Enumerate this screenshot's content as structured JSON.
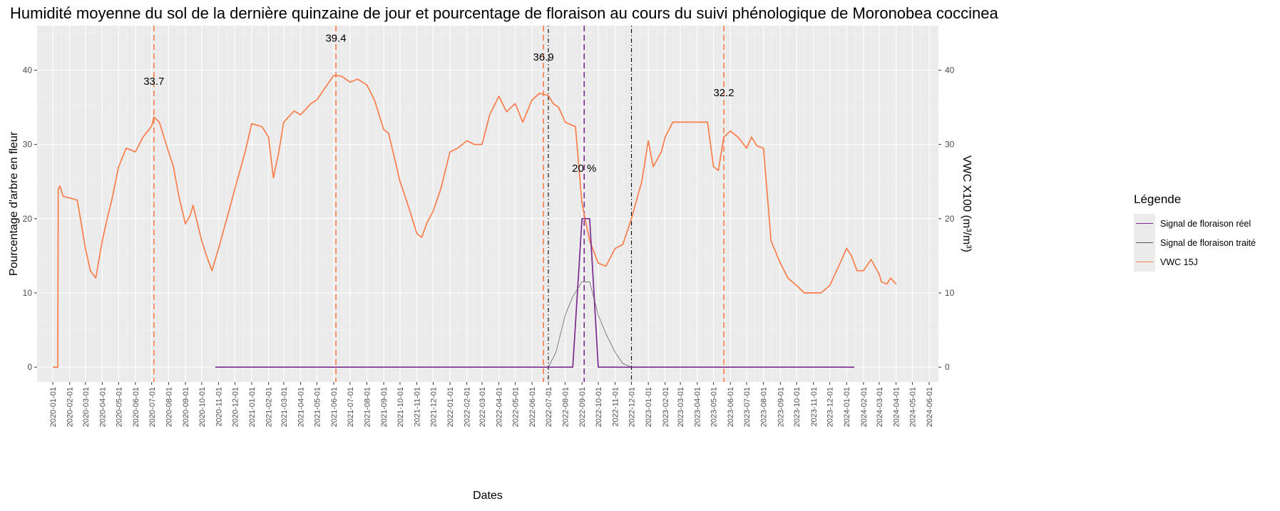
{
  "chart_data": {
    "type": "line",
    "title": "Humidité moyenne du sol de la dernière quinzaine de jour et pourcentage de floraison au cours du suivi phénologique de Moronobea coccinea",
    "xlabel": "Dates",
    "ylabel": "Pourcentage d'arbre en fleur",
    "y2label": "VWC X100 (m³/m³)",
    "ylim": [
      -2,
      46
    ],
    "xlim": [
      "2019-12-03",
      "2024-06-18"
    ],
    "yticks": [
      0,
      10,
      20,
      30,
      40
    ],
    "y2ticks": [
      0,
      10,
      20,
      30,
      40
    ],
    "xticks": [
      "2020-01-01",
      "2020-02-01",
      "2020-03-01",
      "2020-04-01",
      "2020-05-01",
      "2020-06-01",
      "2020-07-01",
      "2020-08-01",
      "2020-09-01",
      "2020-10-01",
      "2020-11-01",
      "2020-12-01",
      "2021-01-01",
      "2021-02-01",
      "2021-03-01",
      "2021-04-01",
      "2021-05-01",
      "2021-06-01",
      "2021-07-01",
      "2021-08-01",
      "2021-09-01",
      "2021-10-01",
      "2021-11-01",
      "2021-12-01",
      "2022-01-01",
      "2022-02-01",
      "2022-03-01",
      "2022-04-01",
      "2022-05-01",
      "2022-06-01",
      "2022-07-01",
      "2022-08-01",
      "2022-09-01",
      "2022-10-01",
      "2022-11-01",
      "2022-12-01",
      "2023-01-01",
      "2023-02-01",
      "2023-03-01",
      "2023-04-01",
      "2023-05-01",
      "2023-06-01",
      "2023-07-01",
      "2023-08-01",
      "2023-09-01",
      "2023-10-01",
      "2023-11-01",
      "2023-12-01",
      "2024-01-01",
      "2024-02-01",
      "2024-03-01",
      "2024-04-01",
      "2024-05-01",
      "2024-06-01"
    ],
    "grid": true,
    "legend": {
      "title": "Légende",
      "position": "right",
      "entries": [
        {
          "label": "Signal de floraison réel",
          "color": "#7b2a8f"
        },
        {
          "label": "Signal de floraison traité",
          "color": "#555555"
        },
        {
          "label": "VWC 15J",
          "color": "#fa7d4a"
        }
      ]
    },
    "series": [
      {
        "name": "VWC 15J",
        "color": "#fa7d4a",
        "points": [
          [
            "2020-01-01",
            0
          ],
          [
            "2020-01-10",
            0
          ],
          [
            "2020-01-11",
            24
          ],
          [
            "2020-01-14",
            24.4
          ],
          [
            "2020-01-20",
            23
          ],
          [
            "2020-02-01",
            22.8
          ],
          [
            "2020-02-15",
            22.5
          ],
          [
            "2020-03-01",
            16
          ],
          [
            "2020-03-10",
            13
          ],
          [
            "2020-03-20",
            12
          ],
          [
            "2020-04-01",
            17
          ],
          [
            "2020-04-10",
            20
          ],
          [
            "2020-04-20",
            23
          ],
          [
            "2020-05-01",
            27
          ],
          [
            "2020-05-15",
            29.5
          ],
          [
            "2020-06-01",
            29
          ],
          [
            "2020-06-15",
            31
          ],
          [
            "2020-07-01",
            32.5
          ],
          [
            "2020-07-05",
            33.7
          ],
          [
            "2020-07-15",
            33
          ],
          [
            "2020-08-01",
            29
          ],
          [
            "2020-08-10",
            27
          ],
          [
            "2020-08-20",
            23
          ],
          [
            "2020-09-01",
            19.3
          ],
          [
            "2020-09-10",
            20.5
          ],
          [
            "2020-09-15",
            21.8
          ],
          [
            "2020-10-01",
            17
          ],
          [
            "2020-10-10",
            15
          ],
          [
            "2020-10-20",
            13
          ],
          [
            "2020-11-01",
            16
          ],
          [
            "2020-11-20",
            21
          ],
          [
            "2020-12-01",
            24
          ],
          [
            "2020-12-20",
            29
          ],
          [
            "2021-01-01",
            32.8
          ],
          [
            "2021-01-20",
            32.4
          ],
          [
            "2021-02-01",
            31
          ],
          [
            "2021-02-10",
            25.5
          ],
          [
            "2021-02-20",
            29
          ],
          [
            "2021-03-01",
            33
          ],
          [
            "2021-03-20",
            34.5
          ],
          [
            "2021-04-01",
            34
          ],
          [
            "2021-04-20",
            35.5
          ],
          [
            "2021-05-01",
            36
          ],
          [
            "2021-05-15",
            37.5
          ],
          [
            "2021-06-01",
            39.3
          ],
          [
            "2021-06-15",
            39.2
          ],
          [
            "2021-07-01",
            38.4
          ],
          [
            "2021-07-15",
            38.8
          ],
          [
            "2021-08-01",
            38
          ],
          [
            "2021-08-15",
            36
          ],
          [
            "2021-09-01",
            32
          ],
          [
            "2021-09-10",
            31.5
          ],
          [
            "2021-10-01",
            25
          ],
          [
            "2021-10-15",
            22
          ],
          [
            "2021-11-01",
            18
          ],
          [
            "2021-11-10",
            17.5
          ],
          [
            "2021-11-20",
            19.5
          ],
          [
            "2021-12-01",
            21
          ],
          [
            "2021-12-15",
            24
          ],
          [
            "2022-01-01",
            29
          ],
          [
            "2022-01-15",
            29.5
          ],
          [
            "2022-02-01",
            30.5
          ],
          [
            "2022-02-15",
            30
          ],
          [
            "2022-03-01",
            30
          ],
          [
            "2022-03-15",
            34
          ],
          [
            "2022-04-01",
            36.5
          ],
          [
            "2022-04-15",
            34.4
          ],
          [
            "2022-05-01",
            35.5
          ],
          [
            "2022-05-15",
            33
          ],
          [
            "2022-06-01",
            36
          ],
          [
            "2022-06-15",
            36.9
          ],
          [
            "2022-07-01",
            36.6
          ],
          [
            "2022-07-10",
            35.5
          ],
          [
            "2022-07-20",
            35
          ],
          [
            "2022-08-01",
            33
          ],
          [
            "2022-08-20",
            32.4
          ],
          [
            "2022-09-01",
            22
          ],
          [
            "2022-09-15",
            17
          ],
          [
            "2022-10-01",
            14
          ],
          [
            "2022-10-15",
            13.6
          ],
          [
            "2022-11-01",
            16
          ],
          [
            "2022-11-15",
            16.5
          ],
          [
            "2022-12-01",
            20
          ],
          [
            "2022-12-20",
            25
          ],
          [
            "2023-01-01",
            30.5
          ],
          [
            "2023-01-10",
            27
          ],
          [
            "2023-01-25",
            29
          ],
          [
            "2023-02-01",
            31
          ],
          [
            "2023-02-15",
            33
          ],
          [
            "2023-03-01",
            33
          ],
          [
            "2023-04-01",
            33
          ],
          [
            "2023-04-20",
            33
          ],
          [
            "2023-05-01",
            27
          ],
          [
            "2023-05-10",
            26.5
          ],
          [
            "2023-05-20",
            31
          ],
          [
            "2023-06-01",
            31.8
          ],
          [
            "2023-06-15",
            31
          ],
          [
            "2023-07-01",
            29.5
          ],
          [
            "2023-07-10",
            31
          ],
          [
            "2023-07-20",
            29.8
          ],
          [
            "2023-08-01",
            29.5
          ],
          [
            "2023-08-15",
            17
          ],
          [
            "2023-09-01",
            14
          ],
          [
            "2023-09-15",
            12
          ],
          [
            "2023-10-01",
            11
          ],
          [
            "2023-10-15",
            10
          ],
          [
            "2023-11-15",
            10
          ],
          [
            "2023-12-01",
            11
          ],
          [
            "2023-12-20",
            14
          ],
          [
            "2024-01-01",
            16
          ],
          [
            "2024-01-10",
            15
          ],
          [
            "2024-01-20",
            13
          ],
          [
            "2024-02-01",
            13
          ],
          [
            "2024-02-15",
            14.5
          ],
          [
            "2024-03-01",
            12.5
          ],
          [
            "2024-03-05",
            11.5
          ],
          [
            "2024-03-15",
            11.2
          ],
          [
            "2024-03-22",
            12
          ],
          [
            "2024-04-01",
            11.2
          ]
        ]
      },
      {
        "name": "Signal de floraison réel",
        "color": "#7b2a8f",
        "points": [
          [
            "2020-10-26",
            0
          ],
          [
            "2022-08-15",
            0
          ],
          [
            "2022-09-01",
            20
          ],
          [
            "2022-09-15",
            20
          ],
          [
            "2022-10-01",
            0
          ],
          [
            "2024-01-15",
            0
          ]
        ]
      },
      {
        "name": "Signal de floraison traité",
        "color": "#555555",
        "points": [
          [
            "2022-07-01",
            0
          ],
          [
            "2022-07-15",
            2
          ],
          [
            "2022-08-01",
            7
          ],
          [
            "2022-08-15",
            9.5
          ],
          [
            "2022-09-01",
            11.5
          ],
          [
            "2022-09-15",
            11.5
          ],
          [
            "2022-10-01",
            7
          ],
          [
            "2022-10-15",
            4.5
          ],
          [
            "2022-11-01",
            2
          ],
          [
            "2022-11-15",
            0.5
          ],
          [
            "2022-12-01",
            0
          ]
        ]
      }
    ],
    "vlines": [
      {
        "x": "2020-07-05",
        "color": "#fa7d4a",
        "style": "dashed",
        "label": "33.7",
        "label_y": 38.5
      },
      {
        "x": "2021-06-05",
        "color": "#fa7d4a",
        "style": "dashed",
        "label": "39.4",
        "label_y": 44.3
      },
      {
        "x": "2022-06-22",
        "color": "#fa7d4a",
        "style": "dashed",
        "label": "36.9",
        "label_y": 41.8
      },
      {
        "x": "2022-07-01",
        "color": "#000000",
        "style": "dotdash"
      },
      {
        "x": "2022-09-05",
        "color": "#7b2a8f",
        "style": "dashed",
        "label": "20 %",
        "label_y": 26.8
      },
      {
        "x": "2022-12-01",
        "color": "#000000",
        "style": "dotdash"
      },
      {
        "x": "2023-05-20",
        "color": "#fa7d4a",
        "style": "dashed",
        "label": "32.2",
        "label_y": 37
      }
    ]
  }
}
